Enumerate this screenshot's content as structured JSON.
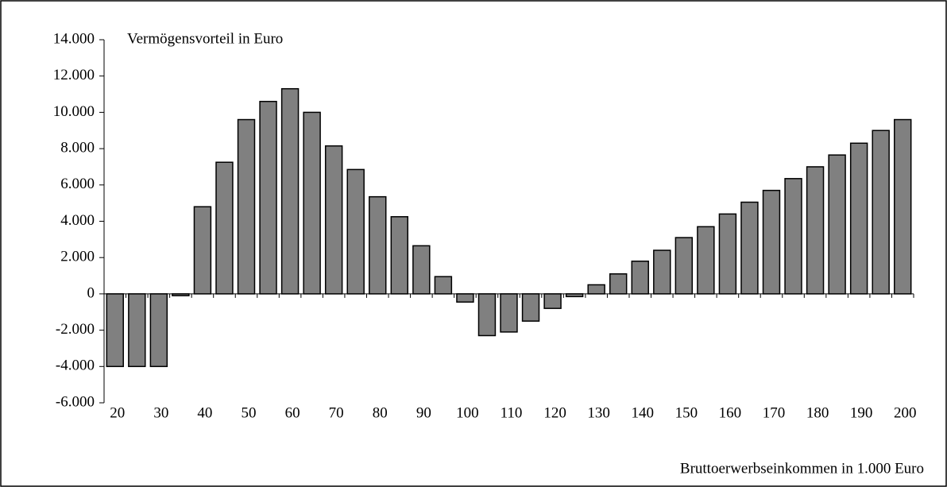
{
  "chart_data": {
    "type": "bar",
    "annotation": "Vermögensvorteil in Euro",
    "x_label": "Bruttoerwerbseinkommen in 1.000 Euro",
    "categories": [
      "20",
      null,
      "30",
      null,
      "40",
      null,
      "50",
      null,
      "60",
      null,
      "70",
      null,
      "80",
      null,
      "90",
      null,
      "100",
      null,
      "110",
      null,
      "120",
      null,
      "130",
      null,
      "140",
      null,
      "150",
      null,
      "160",
      null,
      "170",
      null,
      "180",
      null,
      "190",
      null,
      "200"
    ],
    "values": [
      -4000,
      -4000,
      -4000,
      -100,
      4800,
      7250,
      9600,
      10600,
      11300,
      10000,
      8150,
      6850,
      5350,
      4250,
      2650,
      950,
      -450,
      -2300,
      -2100,
      -1500,
      -800,
      -150,
      500,
      1100,
      1800,
      2400,
      3100,
      3700,
      4400,
      5050,
      5700,
      6350,
      7000,
      7650,
      8300,
      9000,
      9600
    ],
    "color": "#808080",
    "ylim": [
      -6000,
      14000
    ],
    "yticks": [
      {
        "value": -6000,
        "label": "-6.000"
      },
      {
        "value": -4000,
        "label": "-4.000"
      },
      {
        "value": -2000,
        "label": "-2.000"
      },
      0,
      {
        "value": 2000,
        "label": "2.000"
      },
      {
        "value": 4000,
        "label": "4.000"
      },
      {
        "value": 6000,
        "label": "6.000"
      },
      {
        "value": 8000,
        "label": "8.000"
      },
      {
        "value": 10000,
        "label": "10.000"
      },
      {
        "value": 12000,
        "label": "12.000"
      },
      {
        "value": 14000,
        "label": "14.000"
      }
    ],
    "grid": false
  }
}
